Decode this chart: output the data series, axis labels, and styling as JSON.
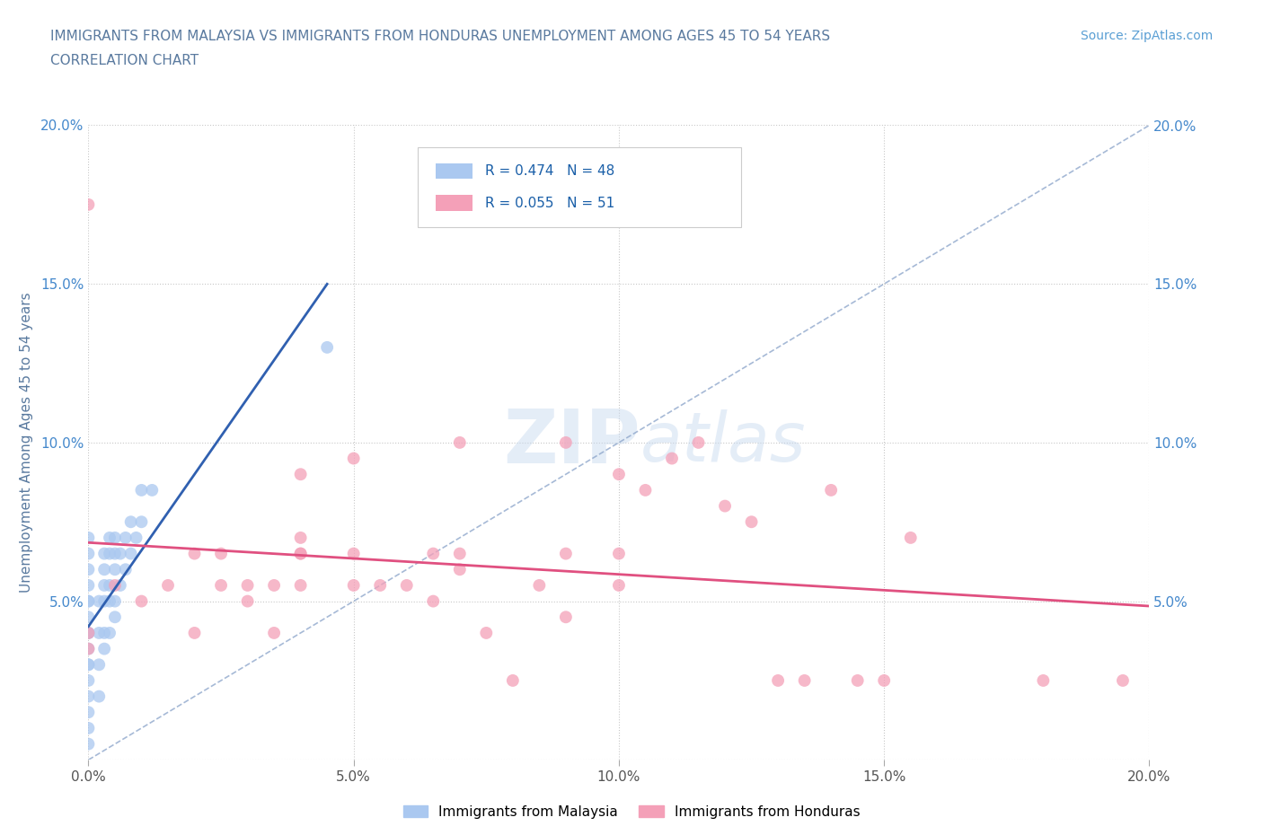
{
  "title_line1": "IMMIGRANTS FROM MALAYSIA VS IMMIGRANTS FROM HONDURAS UNEMPLOYMENT AMONG AGES 45 TO 54 YEARS",
  "title_line2": "CORRELATION CHART",
  "title_color": "#5a7a9f",
  "source_text": "Source: ZipAtlas.com",
  "source_color": "#5a9fd4",
  "ylabel": "Unemployment Among Ages 45 to 54 years",
  "xlim": [
    0.0,
    0.2
  ],
  "ylim": [
    0.0,
    0.2
  ],
  "xticks": [
    0.0,
    0.05,
    0.1,
    0.15,
    0.2
  ],
  "yticks": [
    0.0,
    0.05,
    0.1,
    0.15,
    0.2
  ],
  "xticklabels": [
    "0.0%",
    "5.0%",
    "10.0%",
    "15.0%",
    "20.0%"
  ],
  "yticklabels_left": [
    "",
    "5.0%",
    "10.0%",
    "15.0%",
    "20.0%"
  ],
  "yticklabels_right": [
    "",
    "5.0%",
    "10.0%",
    "15.0%",
    "20.0%"
  ],
  "malaysia_R": 0.474,
  "malaysia_N": 48,
  "honduras_R": 0.055,
  "honduras_N": 51,
  "malaysia_color": "#aac8f0",
  "honduras_color": "#f4a0b8",
  "malaysia_line_color": "#3060b0",
  "honduras_line_color": "#e05080",
  "diagonal_color": "#90a8cc",
  "watermark_zip": "ZIP",
  "watermark_atlas": "atlas",
  "watermark_color_zip": "#c5d8ee",
  "watermark_color_atlas": "#c5d8ee",
  "legend_label_malaysia": "Immigrants from Malaysia",
  "legend_label_honduras": "Immigrants from Honduras",
  "malaysia_x": [
    0.0,
    0.0,
    0.0,
    0.0,
    0.0,
    0.0,
    0.0,
    0.0,
    0.0,
    0.0,
    0.0,
    0.0,
    0.0,
    0.0,
    0.0,
    0.0,
    0.0,
    0.002,
    0.002,
    0.002,
    0.002,
    0.003,
    0.003,
    0.003,
    0.003,
    0.003,
    0.003,
    0.004,
    0.004,
    0.004,
    0.004,
    0.004,
    0.005,
    0.005,
    0.005,
    0.005,
    0.005,
    0.006,
    0.006,
    0.007,
    0.007,
    0.008,
    0.008,
    0.009,
    0.01,
    0.01,
    0.012,
    0.045
  ],
  "malaysia_y": [
    0.005,
    0.01,
    0.015,
    0.02,
    0.025,
    0.03,
    0.03,
    0.035,
    0.04,
    0.04,
    0.045,
    0.05,
    0.05,
    0.055,
    0.06,
    0.065,
    0.07,
    0.02,
    0.03,
    0.04,
    0.05,
    0.035,
    0.04,
    0.05,
    0.055,
    0.06,
    0.065,
    0.04,
    0.05,
    0.055,
    0.065,
    0.07,
    0.045,
    0.05,
    0.06,
    0.065,
    0.07,
    0.055,
    0.065,
    0.06,
    0.07,
    0.065,
    0.075,
    0.07,
    0.075,
    0.085,
    0.085,
    0.13
  ],
  "honduras_x": [
    0.0,
    0.0,
    0.0,
    0.005,
    0.01,
    0.015,
    0.02,
    0.02,
    0.025,
    0.025,
    0.03,
    0.03,
    0.035,
    0.035,
    0.04,
    0.04,
    0.04,
    0.04,
    0.04,
    0.05,
    0.05,
    0.05,
    0.055,
    0.06,
    0.065,
    0.065,
    0.07,
    0.07,
    0.07,
    0.075,
    0.08,
    0.085,
    0.09,
    0.09,
    0.09,
    0.1,
    0.1,
    0.1,
    0.105,
    0.11,
    0.115,
    0.12,
    0.125,
    0.13,
    0.135,
    0.14,
    0.145,
    0.15,
    0.155,
    0.18,
    0.195
  ],
  "honduras_y": [
    0.035,
    0.04,
    0.175,
    0.055,
    0.05,
    0.055,
    0.04,
    0.065,
    0.055,
    0.065,
    0.05,
    0.055,
    0.055,
    0.04,
    0.065,
    0.055,
    0.065,
    0.07,
    0.09,
    0.055,
    0.065,
    0.095,
    0.055,
    0.055,
    0.05,
    0.065,
    0.06,
    0.065,
    0.1,
    0.04,
    0.025,
    0.055,
    0.045,
    0.065,
    0.1,
    0.055,
    0.065,
    0.09,
    0.085,
    0.095,
    0.1,
    0.08,
    0.075,
    0.025,
    0.025,
    0.085,
    0.025,
    0.025,
    0.07,
    0.025,
    0.025
  ]
}
